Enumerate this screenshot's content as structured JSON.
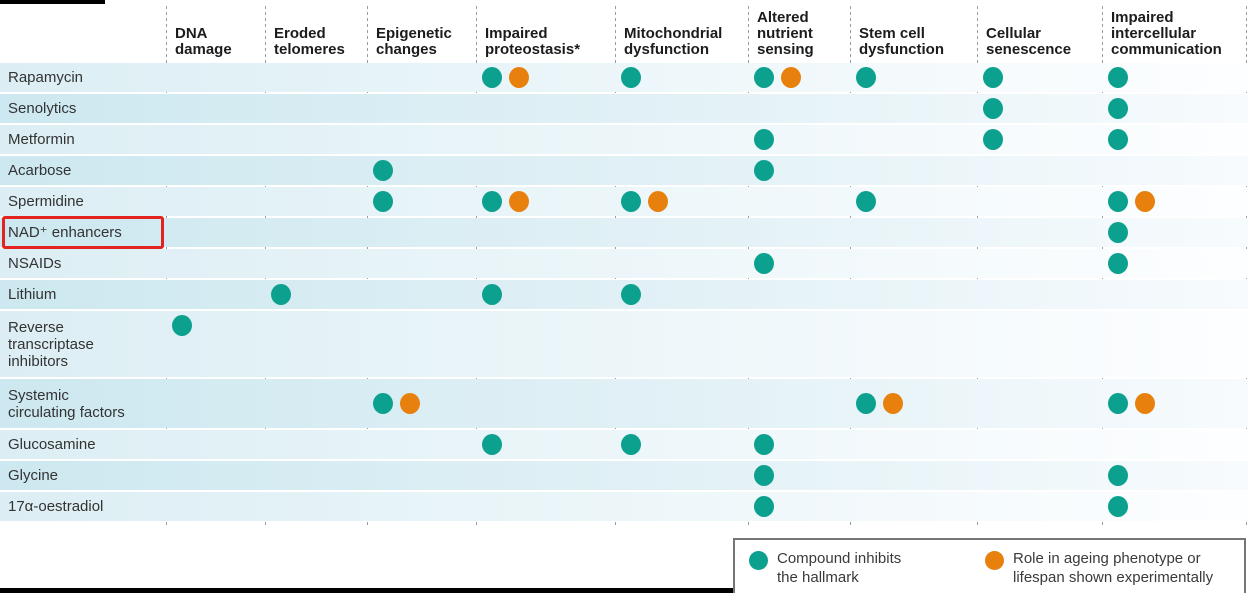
{
  "chart_data": {
    "type": "table",
    "title": "",
    "columns": [
      "DNA\ndamage",
      "Eroded\ntelomeres",
      "Epigenetic\nchanges",
      "Impaired\nproteostasis*",
      "Mitochondrial\ndysfunction",
      "Altered\nnutrient\nsensing",
      "Stem cell\ndysfunction",
      "Cellular\nsenescence",
      "Impaired\nintercellular\ncommunication"
    ],
    "rows": [
      {
        "label": "Rapamycin",
        "highlighted": false,
        "cells": [
          [],
          [],
          [],
          [
            "inhibits",
            "experimental"
          ],
          [
            "inhibits"
          ],
          [
            "inhibits",
            "experimental"
          ],
          [
            "inhibits"
          ],
          [
            "inhibits"
          ],
          [
            "inhibits"
          ]
        ]
      },
      {
        "label": "Senolytics",
        "highlighted": false,
        "cells": [
          [],
          [],
          [],
          [],
          [],
          [],
          [],
          [
            "inhibits"
          ],
          [
            "inhibits"
          ]
        ]
      },
      {
        "label": "Metformin",
        "highlighted": false,
        "cells": [
          [],
          [],
          [],
          [],
          [],
          [
            "inhibits"
          ],
          [],
          [
            "inhibits"
          ],
          [
            "inhibits"
          ]
        ]
      },
      {
        "label": "Acarbose",
        "highlighted": false,
        "cells": [
          [],
          [],
          [
            "inhibits"
          ],
          [],
          [],
          [
            "inhibits"
          ],
          [],
          [],
          []
        ]
      },
      {
        "label": "Spermidine",
        "highlighted": false,
        "cells": [
          [],
          [],
          [
            "inhibits"
          ],
          [
            "inhibits",
            "experimental"
          ],
          [
            "inhibits",
            "experimental"
          ],
          [],
          [
            "inhibits"
          ],
          [],
          [
            "inhibits",
            "experimental"
          ]
        ]
      },
      {
        "label": "NAD⁺ enhancers",
        "highlighted": true,
        "cells": [
          [],
          [],
          [],
          [],
          [],
          [],
          [],
          [],
          [
            "inhibits"
          ]
        ]
      },
      {
        "label": "NSAIDs",
        "highlighted": false,
        "cells": [
          [],
          [],
          [],
          [],
          [],
          [
            "inhibits"
          ],
          [],
          [],
          [
            "inhibits"
          ]
        ]
      },
      {
        "label": "Lithium",
        "highlighted": false,
        "cells": [
          [],
          [
            "inhibits"
          ],
          [],
          [
            "inhibits"
          ],
          [
            "inhibits"
          ],
          [],
          [],
          [],
          []
        ]
      },
      {
        "label": "Reverse\ntranscriptase\ninhibitors",
        "highlighted": false,
        "cells": [
          [
            "inhibits"
          ],
          [],
          [],
          [],
          [],
          [],
          [],
          [],
          []
        ]
      },
      {
        "label": "Systemic\ncirculating factors",
        "highlighted": false,
        "cells": [
          [],
          [],
          [
            "inhibits",
            "experimental"
          ],
          [],
          [],
          [],
          [
            "inhibits",
            "experimental"
          ],
          [],
          [
            "inhibits",
            "experimental"
          ]
        ]
      },
      {
        "label": "Glucosamine",
        "highlighted": false,
        "cells": [
          [],
          [],
          [],
          [
            "inhibits"
          ],
          [
            "inhibits"
          ],
          [
            "inhibits"
          ],
          [],
          [],
          []
        ]
      },
      {
        "label": "Glycine",
        "highlighted": false,
        "cells": [
          [],
          [],
          [],
          [],
          [],
          [
            "inhibits"
          ],
          [],
          [],
          [
            "inhibits"
          ]
        ]
      },
      {
        "label": "17α-oestradiol",
        "highlighted": false,
        "cells": [
          [],
          [],
          [],
          [],
          [],
          [
            "inhibits"
          ],
          [],
          [],
          [
            "inhibits"
          ]
        ]
      }
    ],
    "legend": [
      {
        "key": "inhibits",
        "color": "#0ca18e",
        "label": "Compound inhibits\nthe hallmark"
      },
      {
        "key": "experimental",
        "color": "#e8800e",
        "label": "Role in ageing phenotype or\nlifespan shown experimentally"
      }
    ],
    "annotation": {
      "shape": "red-box",
      "color": "#e42320",
      "target_row": "NAD⁺ enhancers"
    },
    "layout": {
      "legend_position": "bottom-right",
      "grid": "dashed-vertical-lines",
      "row_striping": "alternating-light-blue"
    }
  }
}
